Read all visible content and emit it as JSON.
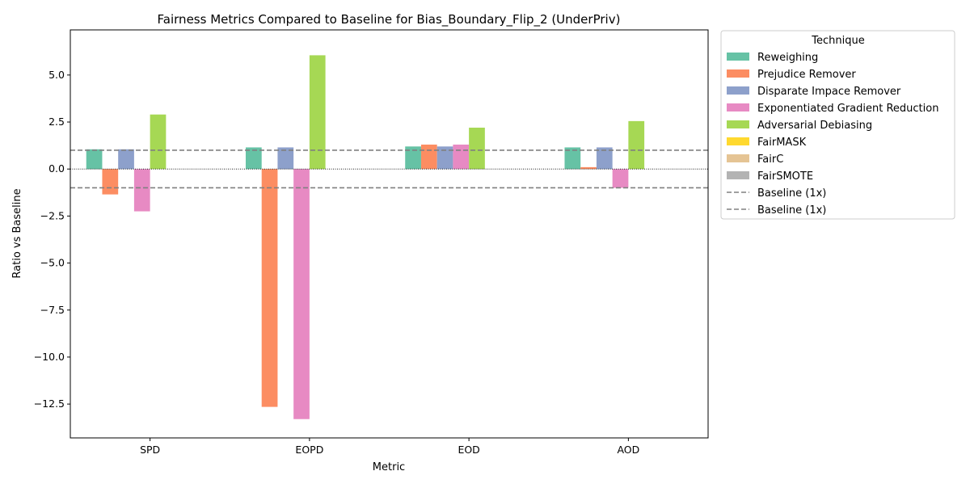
{
  "chart_data": {
    "type": "bar",
    "title": "Fairness Metrics Compared to Baseline for Bias_Boundary_Flip_2 (UnderPriv)",
    "xlabel": "Metric",
    "ylabel": "Ratio vs Baseline",
    "categories": [
      "SPD",
      "EOPD",
      "EOD",
      "AOD"
    ],
    "ylim": [
      -14.3,
      7.4
    ],
    "yticks": [
      5.0,
      2.5,
      0.0,
      -2.5,
      -5.0,
      -7.5,
      -10.0,
      -12.5
    ],
    "ytick_labels": [
      "5.0",
      "2.5",
      "0.0",
      "−2.5",
      "−5.0",
      "−7.5",
      "−10.0",
      "−12.5"
    ],
    "series": [
      {
        "name": "Reweighing",
        "color": "#66c2a5",
        "values": [
          1.05,
          1.15,
          1.2,
          1.15
        ]
      },
      {
        "name": "Prejudice Remover",
        "color": "#fc8d62",
        "values": [
          -1.35,
          -12.65,
          1.3,
          0.1
        ]
      },
      {
        "name": "Disparate Impace Remover",
        "color": "#8da0cb",
        "values": [
          1.05,
          1.15,
          1.2,
          1.15
        ]
      },
      {
        "name": "Exponentiated Gradient Reduction",
        "color": "#e78ac3",
        "values": [
          -2.25,
          -13.3,
          1.3,
          -1.0
        ]
      },
      {
        "name": "Adversarial Debiasing",
        "color": "#a6d854",
        "values": [
          2.9,
          6.05,
          2.2,
          2.55
        ]
      },
      {
        "name": "FairMASK",
        "color": "#ffd92f",
        "values": [
          0,
          0,
          0,
          0
        ]
      },
      {
        "name": "FairC",
        "color": "#e5c494",
        "values": [
          0,
          0,
          0,
          0
        ]
      },
      {
        "name": "FairSMOTE",
        "color": "#b3b3b3",
        "values": [
          0,
          0,
          0,
          0
        ]
      }
    ],
    "reference_lines": [
      {
        "label": "Baseline (1x)",
        "value": 1.0,
        "style": "dashed",
        "color": "#808080"
      },
      {
        "label": "Baseline (1x)",
        "value": -1.0,
        "style": "dashed",
        "color": "#808080"
      }
    ],
    "zero_line": {
      "value": 0.0,
      "style": "dotted"
    },
    "legend": {
      "title": "Technique",
      "placement": "outside-top-right"
    }
  }
}
